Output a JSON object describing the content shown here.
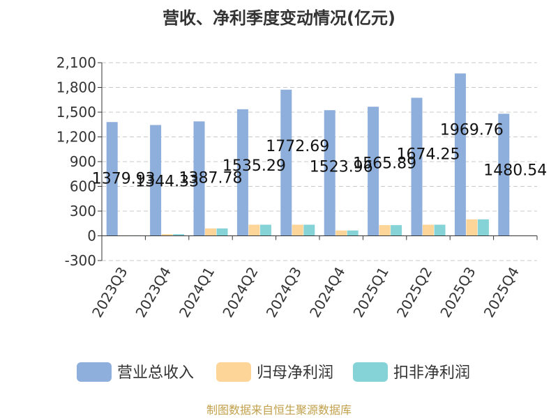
{
  "chart_data": {
    "type": "bar",
    "title": "营收、净利季度变动情况(亿元)",
    "ylabel": "",
    "xlabel": "",
    "categories": [
      "2023Q3",
      "2023Q4",
      "2024Q1",
      "2024Q2",
      "2024Q3",
      "2024Q4",
      "2025Q1",
      "2025Q2",
      "2025Q3",
      "2025Q4"
    ],
    "series": [
      {
        "name": "营业总收入",
        "color": "#8eaedc",
        "values": [
          1379.93,
          1344.33,
          1387.78,
          1535.29,
          1772.69,
          1523.96,
          1565.89,
          1674.25,
          1969.76,
          1480.54
        ],
        "labels": [
          "1379.93",
          "1344.33",
          "1387.78",
          "1535.29",
          "1772.69",
          "1523.96",
          "1565.89",
          "1674.25",
          "1969.76",
          "1480.54"
        ]
      },
      {
        "name": "归母净利润",
        "color": "#fdd598",
        "values": [
          5,
          20,
          90,
          135,
          135,
          65,
          130,
          135,
          200,
          2
        ]
      },
      {
        "name": "扣非净利润",
        "color": "#86d3d7",
        "values": [
          5,
          20,
          90,
          135,
          135,
          65,
          130,
          135,
          200,
          2
        ]
      }
    ],
    "yticks": [
      "-300",
      "0",
      "300",
      "600",
      "900",
      "1,200",
      "1,500",
      "1,800",
      "2,100"
    ],
    "yticks_values": [
      -300,
      0,
      300,
      600,
      900,
      1200,
      1500,
      1800,
      2100
    ],
    "ylim": [
      -300,
      2100
    ],
    "grid": true,
    "legend_position": "bottom",
    "source": "制图数据来自恒生聚源数据库"
  }
}
